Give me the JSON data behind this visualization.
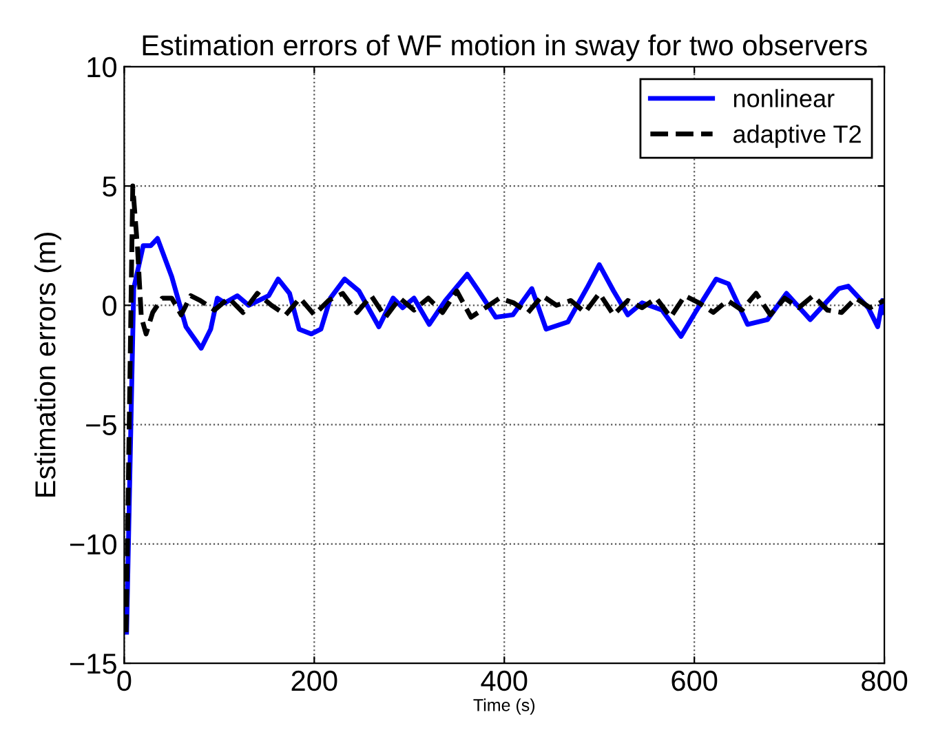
{
  "chart_data": {
    "type": "line",
    "title": "Estimation errors of WF motion in sway for two observers",
    "xlabel": "Time (s)",
    "ylabel": "Estimation errors (m)",
    "xlim": [
      0,
      800
    ],
    "xticks": [
      0,
      200,
      400,
      600,
      800
    ],
    "ylim": [
      -15,
      10
    ],
    "yticks": [
      -15,
      -10,
      -5,
      0,
      5,
      10
    ],
    "grid": true,
    "legend": "top right",
    "series": [
      {
        "name": "nonlinear",
        "color": "#0000ff",
        "line_style": "solid",
        "x": [
          2.5,
          10,
          20,
          28,
          35,
          50,
          65,
          81,
          91,
          98,
          106,
          119,
          131,
          152,
          162,
          174,
          184,
          197,
          207,
          217,
          232,
          247,
          268,
          283,
          293,
          305,
          321,
          338,
          361,
          373,
          391,
          409,
          429,
          444,
          467,
          488,
          500,
          515,
          530,
          545,
          566,
          586,
          601,
          623,
          636,
          656,
          677,
          697,
          722,
          752,
          762,
          783,
          793,
          798,
          800
        ],
        "values": [
          -13.7,
          0.7,
          2.5,
          2.5,
          2.8,
          1.2,
          -0.9,
          -1.8,
          -1.0,
          0.3,
          0.1,
          0.4,
          0.0,
          0.4,
          1.1,
          0.5,
          -1.0,
          -1.2,
          -1.0,
          0.3,
          1.1,
          0.6,
          -0.9,
          0.3,
          -0.1,
          0.3,
          -0.8,
          0.2,
          1.3,
          0.6,
          -0.5,
          -0.4,
          0.7,
          -1.0,
          -0.7,
          0.8,
          1.7,
          0.6,
          -0.4,
          0.1,
          -0.2,
          -1.3,
          -0.3,
          1.1,
          0.9,
          -0.8,
          -0.6,
          0.5,
          -0.6,
          0.7,
          0.8,
          -0.1,
          -0.9,
          0.2,
          -0.3
        ]
      },
      {
        "name": "adaptive T2",
        "color": "#000000",
        "line_style": "dashed",
        "x": [
          2,
          9,
          14,
          18,
          23,
          30,
          40,
          50,
          60,
          70,
          80,
          95,
          110,
          125,
          140,
          155,
          170,
          185,
          200,
          215,
          230,
          245,
          260,
          275,
          290,
          305,
          320,
          335,
          350,
          365,
          380,
          395,
          410,
          425,
          440,
          455,
          470,
          485,
          500,
          515,
          530,
          545,
          560,
          575,
          590,
          605,
          620,
          635,
          650,
          665,
          680,
          695,
          710,
          725,
          740,
          755,
          770,
          785,
          800
        ],
        "values": [
          -13.7,
          5.0,
          2.4,
          -0.5,
          -1.2,
          -0.3,
          0.3,
          0.3,
          -0.4,
          0.4,
          0.2,
          -0.2,
          0.3,
          -0.3,
          0.5,
          0.0,
          -0.4,
          0.3,
          -0.4,
          0.2,
          0.5,
          -0.3,
          0.4,
          -0.5,
          0.3,
          -0.2,
          0.3,
          -0.3,
          0.6,
          -0.5,
          -0.1,
          0.3,
          0.1,
          -0.3,
          0.4,
          0.0,
          0.2,
          -0.3,
          0.5,
          -0.4,
          0.2,
          -0.1,
          0.3,
          -0.5,
          0.4,
          0.1,
          -0.3,
          0.2,
          -0.2,
          0.5,
          -0.4,
          0.3,
          -0.1,
          0.4,
          -0.2,
          -0.3,
          0.3,
          -0.1,
          0.2
        ]
      }
    ]
  }
}
